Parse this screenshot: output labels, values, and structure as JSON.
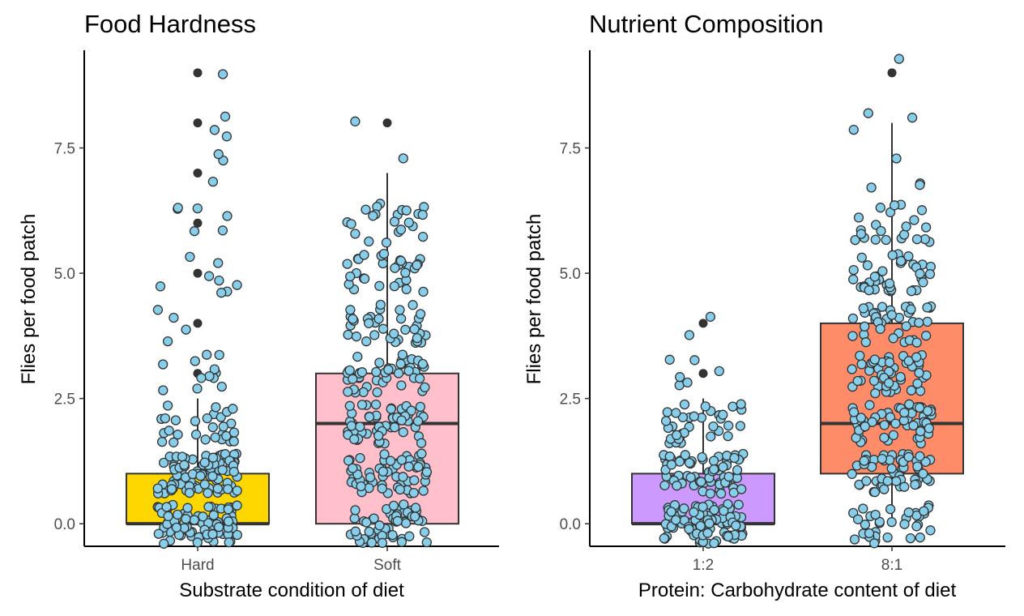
{
  "chart_data": [
    {
      "type": "box",
      "title": "Food Hardness",
      "xlabel": "Substrate condition of diet",
      "ylabel": "Flies per food patch",
      "ylim": [
        -0.45,
        9.45
      ],
      "yticks": [
        0.0,
        2.5,
        5.0,
        7.5
      ],
      "ytick_labels": [
        "0.0",
        "2.5",
        "5.0",
        "7.5"
      ],
      "grid": false,
      "jitter_color": "#87CEEB",
      "groups": [
        {
          "name": "Hard",
          "fill": "#FFD700",
          "q1": 0,
          "median": 0,
          "q3": 1,
          "whisker_low": 0,
          "whisker_high": 2.5,
          "outliers": [
            3,
            4,
            5,
            6,
            7,
            8,
            9
          ],
          "jitter_counts": [
            [
              0,
              80
            ],
            [
              1,
              90
            ],
            [
              2,
              28
            ],
            [
              3,
              12
            ],
            [
              4,
              4
            ],
            [
              5,
              8
            ],
            [
              6,
              6
            ],
            [
              7,
              3
            ],
            [
              8,
              3
            ],
            [
              9,
              1
            ]
          ]
        },
        {
          "name": "Soft",
          "fill": "#FFC0CB",
          "q1": 0,
          "median": 2,
          "q3": 3,
          "whisker_low": 0,
          "whisker_high": 7,
          "outliers": [
            8
          ],
          "jitter_counts": [
            [
              0,
              55
            ],
            [
              1,
              60
            ],
            [
              2,
              55
            ],
            [
              3,
              45
            ],
            [
              4,
              35
            ],
            [
              5,
              30
            ],
            [
              6,
              22
            ],
            [
              7,
              1
            ],
            [
              8,
              1
            ]
          ]
        }
      ]
    },
    {
      "type": "box",
      "title": "Nutrient Composition",
      "xlabel": "Protein: Carbohydrate content of diet",
      "ylabel": "Flies per food patch",
      "ylim": [
        -0.45,
        9.45
      ],
      "yticks": [
        0.0,
        2.5,
        5.0,
        7.5
      ],
      "ytick_labels": [
        "0.0",
        "2.5",
        "5.0",
        "7.5"
      ],
      "grid": false,
      "jitter_color": "#87CEEB",
      "groups": [
        {
          "name": "1:2",
          "fill": "#CC99FF",
          "q1": 0,
          "median": 0,
          "q3": 1,
          "whisker_low": 0,
          "whisker_high": 2.5,
          "outliers": [
            3,
            4
          ],
          "jitter_counts": [
            [
              0,
              85
            ],
            [
              1,
              65
            ],
            [
              2,
              35
            ],
            [
              3,
              6
            ],
            [
              4,
              2
            ]
          ]
        },
        {
          "name": "8:1",
          "fill": "#FF8C69",
          "q1": 1,
          "median": 2,
          "q3": 4,
          "whisker_low": 0,
          "whisker_high": 8,
          "outliers": [
            9
          ],
          "jitter_counts": [
            [
              0,
              35
            ],
            [
              1,
              55
            ],
            [
              2,
              55
            ],
            [
              3,
              45
            ],
            [
              4,
              40
            ],
            [
              5,
              38
            ],
            [
              6,
              22
            ],
            [
              7,
              4
            ],
            [
              8,
              3
            ],
            [
              9,
              1
            ]
          ]
        }
      ]
    }
  ]
}
